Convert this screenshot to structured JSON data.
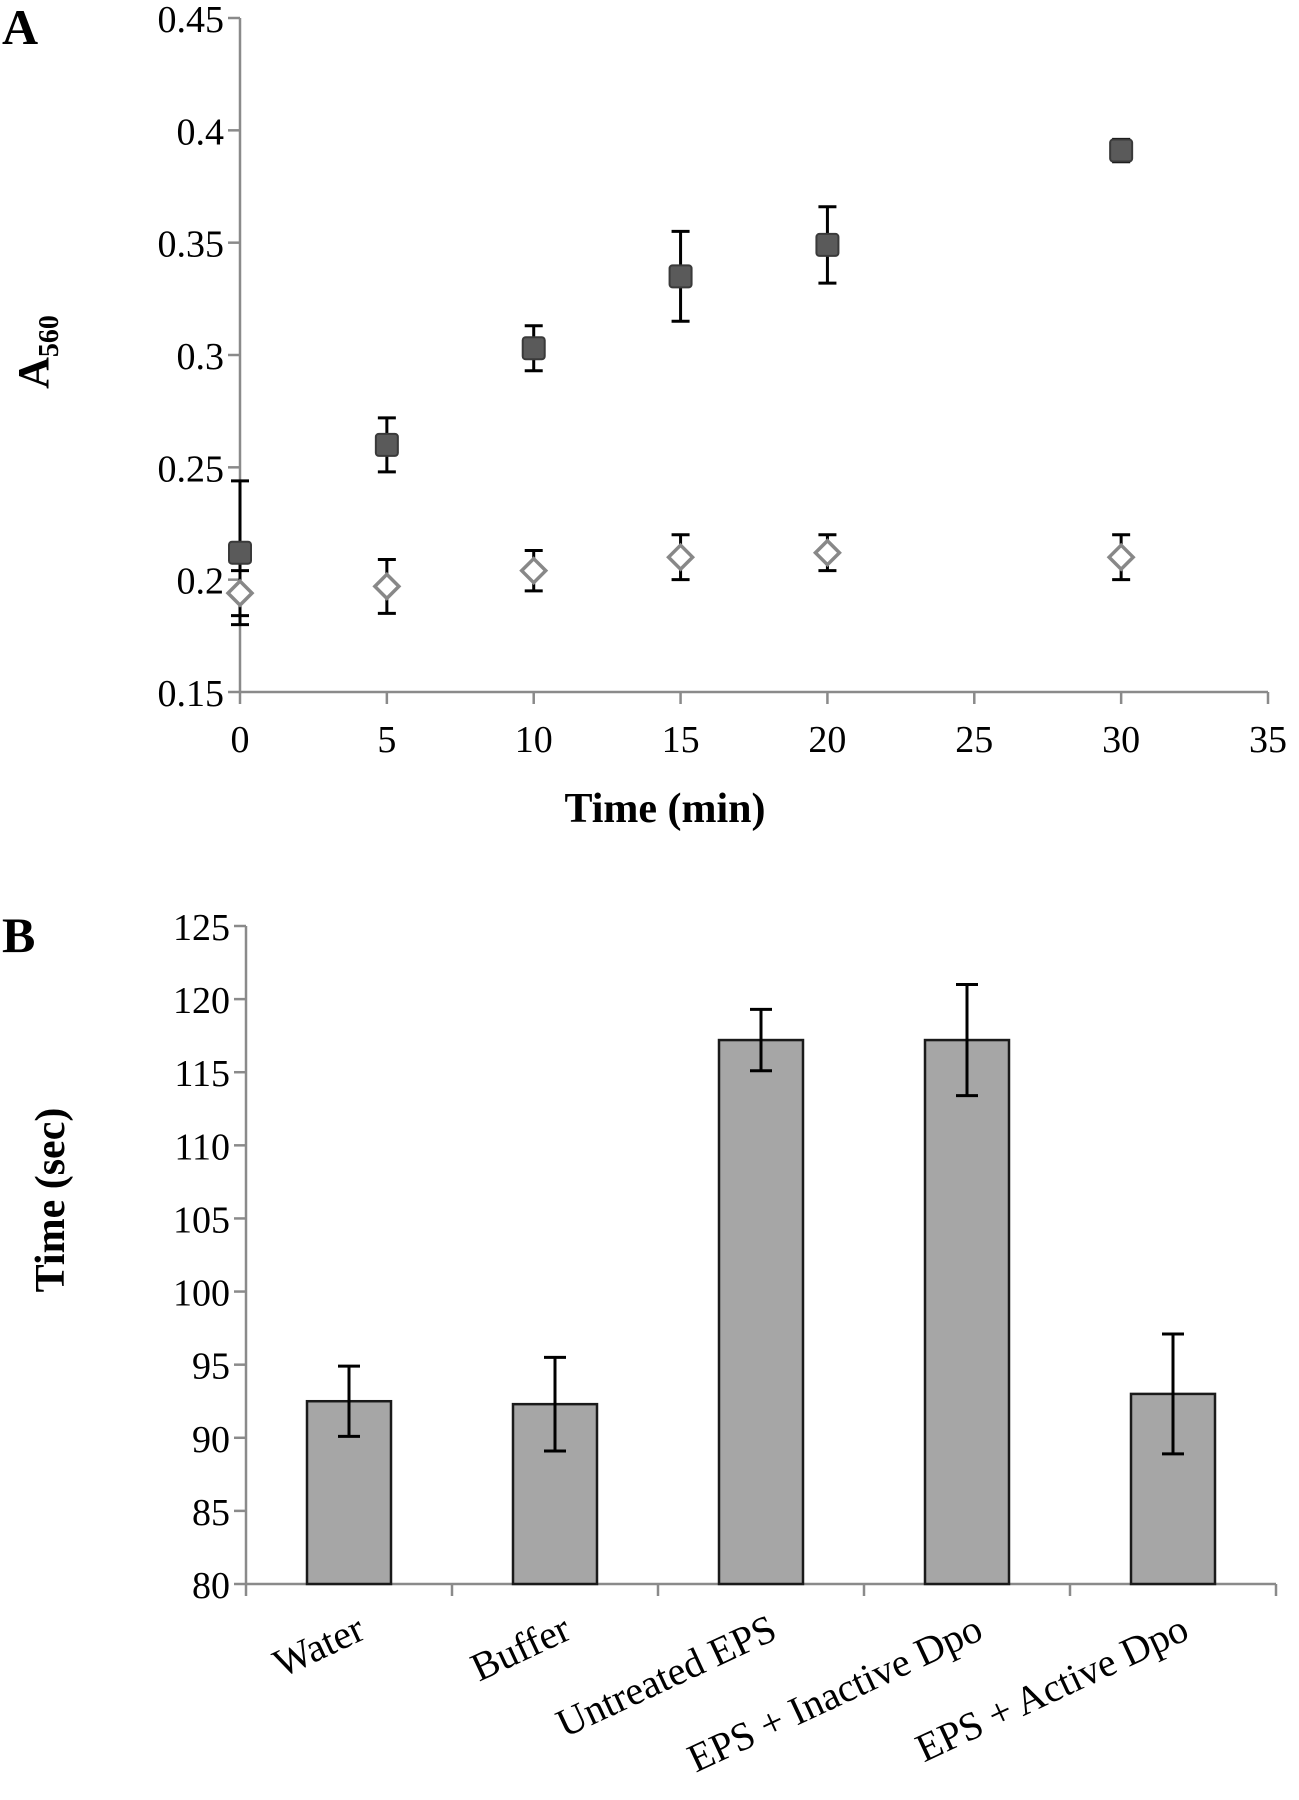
{
  "chart_data": [
    {
      "panel_label": "A",
      "type": "scatter",
      "title": "",
      "xlabel": "Time (min)",
      "ylabel": "A",
      "ylabel_subscript": "560",
      "xlim": [
        0,
        35
      ],
      "ylim": [
        0.15,
        0.45
      ],
      "x_ticks": [
        0,
        5,
        10,
        15,
        20,
        25,
        30,
        35
      ],
      "x_tick_labels": [
        "0",
        "5",
        "10",
        "15",
        "20",
        "25",
        "30",
        "35"
      ],
      "y_ticks": [
        0.15,
        0.2,
        0.25,
        0.3,
        0.35,
        0.4,
        0.45
      ],
      "y_tick_labels": [
        "0.15",
        "0.2",
        "0.25",
        "0.3",
        "0.35",
        "0.4",
        "0.45"
      ],
      "grid": false,
      "legend": "none",
      "series": [
        {
          "marker": "filled-square",
          "color": "#5a5a5a",
          "x": [
            0,
            5,
            10,
            15,
            20,
            30
          ],
          "y": [
            0.212,
            0.26,
            0.303,
            0.335,
            0.349,
            0.391
          ],
          "err": [
            0.032,
            0.012,
            0.01,
            0.02,
            0.017,
            0.005
          ]
        },
        {
          "marker": "open-diamond",
          "color": "#888888",
          "x": [
            0,
            5,
            10,
            15,
            20,
            30
          ],
          "y": [
            0.194,
            0.197,
            0.204,
            0.21,
            0.212,
            0.21
          ],
          "err": [
            0.01,
            0.012,
            0.009,
            0.01,
            0.008,
            0.01
          ]
        }
      ]
    },
    {
      "panel_label": "B",
      "type": "bar",
      "title": "",
      "xlabel": "",
      "ylabel": "Time (sec)",
      "ylim": [
        80,
        125
      ],
      "y_ticks": [
        80,
        85,
        90,
        95,
        100,
        105,
        110,
        115,
        120,
        125
      ],
      "y_tick_labels": [
        "80",
        "85",
        "90",
        "95",
        "100",
        "105",
        "110",
        "115",
        "120",
        "125"
      ],
      "grid": false,
      "legend": "none",
      "bar_color": "#a6a6a6",
      "categories": [
        "Water",
        "Buffer",
        "Untreated EPS",
        "EPS + Inactive Dpo",
        "EPS + Active Dpo"
      ],
      "values": [
        92.5,
        92.3,
        117.2,
        117.2,
        93.0
      ],
      "err": [
        2.4,
        3.2,
        2.1,
        3.8,
        4.1
      ]
    }
  ]
}
